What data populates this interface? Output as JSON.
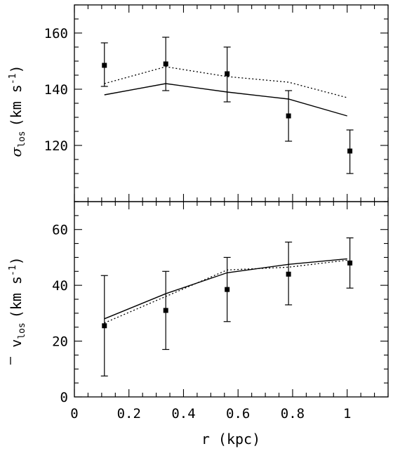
{
  "chart_data": [
    {
      "type": "scatter",
      "panel": "top",
      "title": "",
      "xlabel": "",
      "ylabel": {
        "symbol": "σ",
        "sub": "los",
        "unit_main": "(km s",
        "unit_sup": "-1",
        "unit_close": ")"
      },
      "xlim": [
        0,
        1.15
      ],
      "ylim": [
        100,
        170
      ],
      "yticks": [
        120,
        140,
        160
      ],
      "xticks": [
        0,
        0.2,
        0.4,
        0.6,
        0.8,
        1
      ],
      "show_x_tick_labels": false,
      "points": [
        {
          "x": 0.11,
          "y": 148.5,
          "err_low": 141,
          "err_high": 156.5
        },
        {
          "x": 0.335,
          "y": 149,
          "err_low": 139.5,
          "err_high": 158.5
        },
        {
          "x": 0.56,
          "y": 145.5,
          "err_low": 135.5,
          "err_high": 155
        },
        {
          "x": 0.785,
          "y": 130.5,
          "err_low": 121.5,
          "err_high": 139.5
        },
        {
          "x": 1.01,
          "y": 118,
          "err_low": 110,
          "err_high": 125.5
        }
      ],
      "series": [
        {
          "style": "solid",
          "x": [
            0.11,
            0.335,
            0.56,
            0.785,
            1.0
          ],
          "y": [
            138,
            142,
            139,
            136.5,
            130.5
          ]
        },
        {
          "style": "dotted",
          "x": [
            0.11,
            0.335,
            0.56,
            0.785,
            1.0
          ],
          "y": [
            142,
            148,
            144.5,
            142.5,
            137
          ]
        }
      ]
    },
    {
      "type": "scatter",
      "panel": "bottom",
      "title": "",
      "xlabel": "r (kpc)",
      "ylabel": {
        "symbol": "v",
        "sub": "los",
        "unit_main": "(km s",
        "unit_sup": "-1",
        "unit_close": ")"
      },
      "xlim": [
        0,
        1.15
      ],
      "ylim": [
        0,
        70
      ],
      "yticks": [
        0,
        20,
        40,
        60
      ],
      "xticks": [
        0,
        0.2,
        0.4,
        0.6,
        0.8,
        1
      ],
      "xtick_labels": [
        "0",
        "0.2",
        "0.4",
        "0.6",
        "0.8",
        "1"
      ],
      "show_x_tick_labels": true,
      "points": [
        {
          "x": 0.11,
          "y": 25.5,
          "err_low": 7.5,
          "err_high": 43.5
        },
        {
          "x": 0.335,
          "y": 31,
          "err_low": 17,
          "err_high": 45
        },
        {
          "x": 0.56,
          "y": 38.5,
          "err_low": 27,
          "err_high": 50
        },
        {
          "x": 0.785,
          "y": 44,
          "err_low": 33,
          "err_high": 55.5
        },
        {
          "x": 1.01,
          "y": 48,
          "err_low": 39,
          "err_high": 57
        }
      ],
      "series": [
        {
          "style": "solid",
          "x": [
            0.11,
            0.335,
            0.56,
            0.785,
            1.0
          ],
          "y": [
            28,
            37,
            44.5,
            47.5,
            49.5
          ]
        },
        {
          "style": "dotted",
          "x": [
            0.11,
            0.335,
            0.56,
            0.785,
            1.0
          ],
          "y": [
            26.5,
            36,
            45.5,
            46.5,
            49
          ]
        }
      ]
    }
  ]
}
